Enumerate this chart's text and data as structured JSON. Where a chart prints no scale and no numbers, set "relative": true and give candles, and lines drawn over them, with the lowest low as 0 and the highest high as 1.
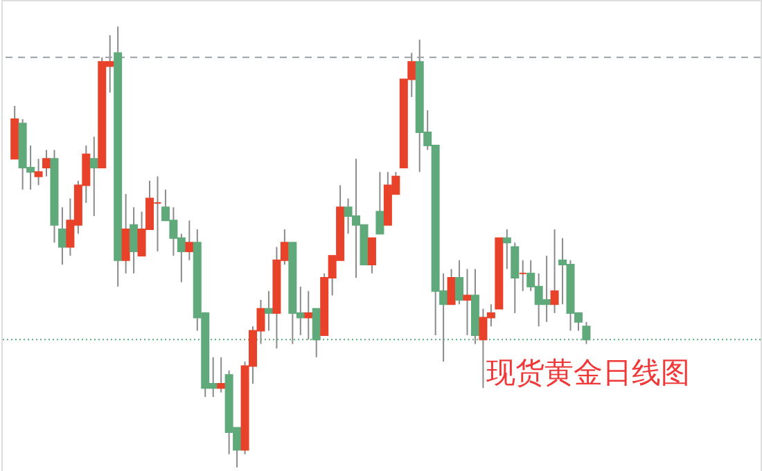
{
  "chart_data": {
    "type": "candlestick",
    "relative": true,
    "annotations": [
      "现货黄金日线图"
    ],
    "categories": [
      null,
      null,
      null,
      null,
      null,
      null,
      null,
      null,
      null,
      null,
      null,
      null,
      null,
      null,
      null,
      null,
      null,
      null,
      null,
      null,
      null,
      null,
      null,
      null,
      null,
      null,
      null,
      null,
      null,
      null,
      null,
      null,
      null,
      null,
      null,
      null,
      null,
      null,
      null,
      null,
      null,
      null,
      null,
      null,
      null,
      null,
      null,
      null,
      null,
      null,
      null,
      null,
      null,
      null,
      null,
      null,
      null,
      null,
      null,
      null,
      null,
      null,
      null,
      null,
      null,
      null,
      null,
      null,
      null,
      null,
      null,
      null,
      null
    ],
    "ohlc": [
      [
        0.7,
        0.82,
        0.7,
        0.79
      ],
      [
        0.78,
        0.79,
        0.63,
        0.68
      ],
      [
        0.68,
        0.73,
        0.63,
        0.67
      ],
      [
        0.66,
        0.7,
        0.64,
        0.67
      ],
      [
        0.68,
        0.72,
        0.66,
        0.7
      ],
      [
        0.7,
        0.72,
        0.51,
        0.55
      ],
      [
        0.54,
        0.59,
        0.46,
        0.5
      ],
      [
        0.5,
        0.61,
        0.48,
        0.56
      ],
      [
        0.55,
        0.65,
        0.53,
        0.64
      ],
      [
        0.64,
        0.73,
        0.6,
        0.71
      ],
      [
        0.7,
        0.75,
        0.57,
        0.68
      ],
      [
        0.68,
        0.93,
        0.68,
        0.92
      ],
      [
        0.91,
        0.98,
        0.85,
        0.92
      ],
      [
        0.94,
        1.0,
        0.41,
        0.47
      ],
      [
        0.47,
        0.62,
        0.44,
        0.54
      ],
      [
        0.55,
        0.59,
        0.44,
        0.49
      ],
      [
        0.48,
        0.58,
        0.48,
        0.54
      ],
      [
        0.54,
        0.65,
        0.54,
        0.61
      ],
      [
        0.6,
        0.66,
        0.49,
        0.6
      ],
      [
        0.59,
        0.63,
        0.56,
        0.56
      ],
      [
        0.56,
        0.59,
        0.48,
        0.52
      ],
      [
        0.52,
        0.53,
        0.42,
        0.49
      ],
      [
        0.49,
        0.56,
        0.47,
        0.51
      ],
      [
        0.51,
        0.54,
        0.31,
        0.34
      ],
      [
        0.35,
        0.35,
        0.16,
        0.18
      ],
      [
        0.19,
        0.25,
        0.16,
        0.18
      ],
      [
        0.18,
        0.25,
        0.17,
        0.19
      ],
      [
        0.21,
        0.22,
        0.03,
        0.08
      ],
      [
        0.09,
        0.09,
        0,
        0.04
      ],
      [
        0.04,
        0.24,
        0.03,
        0.23
      ],
      [
        0.23,
        0.32,
        0.19,
        0.31
      ],
      [
        0.31,
        0.38,
        0.28,
        0.36
      ],
      [
        0.36,
        0.4,
        0.31,
        0.35
      ],
      [
        0.35,
        0.5,
        0.27,
        0.47
      ],
      [
        0.47,
        0.54,
        0.46,
        0.51
      ],
      [
        0.51,
        0.51,
        0.28,
        0.35
      ],
      [
        0.35,
        0.41,
        0.3,
        0.34
      ],
      [
        0.34,
        0.4,
        0.29,
        0.35
      ],
      [
        0.36,
        0.36,
        0.25,
        0.29
      ],
      [
        0.3,
        0.44,
        0.3,
        0.43
      ],
      [
        0.43,
        0.48,
        0.39,
        0.48
      ],
      [
        0.47,
        0.64,
        0.47,
        0.59
      ],
      [
        0.59,
        0.61,
        0.53,
        0.57
      ],
      [
        0.57,
        0.7,
        0.43,
        0.55
      ],
      [
        0.55,
        0.55,
        0.46,
        0.46
      ],
      [
        0.46,
        0.52,
        0.44,
        0.52
      ],
      [
        0.58,
        0.67,
        0.53,
        0.53
      ],
      [
        0.55,
        0.67,
        0.55,
        0.64
      ],
      [
        0.62,
        0.67,
        0.62,
        0.66
      ],
      [
        0.68,
        0.88,
        0.68,
        0.88
      ],
      [
        0.88,
        0.94,
        0.84,
        0.92
      ],
      [
        0.92,
        0.97,
        0.67,
        0.76
      ],
      [
        0.76,
        0.81,
        0.72,
        0.73
      ],
      [
        0.73,
        0.73,
        0.3,
        0.4
      ],
      [
        0.4,
        0.44,
        0.24,
        0.37
      ],
      [
        0.37,
        0.45,
        0.37,
        0.43
      ],
      [
        0.43,
        0.47,
        0.37,
        0.38
      ],
      [
        0.38,
        0.45,
        0.3,
        0.39
      ],
      [
        0.39,
        0.45,
        0.28,
        0.3
      ],
      [
        0.29,
        0.36,
        0.18,
        0.34
      ],
      [
        0.34,
        0.37,
        0.32,
        0.35
      ],
      [
        0.36,
        0.52,
        0.36,
        0.52
      ],
      [
        0.52,
        0.54,
        0.45,
        0.51
      ],
      [
        0.5,
        0.51,
        0.35,
        0.43
      ],
      [
        0.44,
        0.47,
        0.4,
        0.44
      ],
      [
        0.44,
        0.47,
        0.4,
        0.41
      ],
      [
        0.41,
        0.44,
        0.32,
        0.37
      ],
      [
        0.38,
        0.48,
        0.33,
        0.37
      ],
      [
        0.37,
        0.54,
        0.35,
        0.4
      ],
      [
        0.47,
        0.52,
        0.37,
        0.46
      ],
      [
        0.46,
        0.47,
        0.31,
        0.35
      ],
      [
        0.35,
        0.35,
        0.31,
        0.33
      ],
      [
        0.32,
        0.33,
        0.28,
        0.29
      ]
    ],
    "colors": [
      "#e8432a",
      "#5fa97a",
      "#5fa97a",
      "#e8432a",
      "#e8432a",
      "#5fa97a",
      "#5fa97a",
      "#e8432a",
      "#e8432a",
      "#e8432a",
      "#5fa97a",
      "#e8432a",
      "#e8432a",
      "#5fa97a",
      "#e8432a",
      "#5fa97a",
      "#e8432a",
      "#e8432a",
      "#e8432a",
      "#5fa97a",
      "#5fa97a",
      "#5fa97a",
      "#e8432a",
      "#5fa97a",
      "#5fa97a",
      "#5fa97a",
      "#e8432a",
      "#5fa97a",
      "#5fa97a",
      "#e8432a",
      "#e8432a",
      "#e8432a",
      "#5fa97a",
      "#e8432a",
      "#e8432a",
      "#5fa97a",
      "#5fa97a",
      "#e8432a",
      "#5fa97a",
      "#e8432a",
      "#e8432a",
      "#e8432a",
      "#5fa97a",
      "#5fa97a",
      "#5fa97a",
      "#e8432a",
      "#5fa97a",
      "#e8432a",
      "#e8432a",
      "#e8432a",
      "#e8432a",
      "#5fa97a",
      "#5fa97a",
      "#5fa97a",
      "#5fa97a",
      "#e8432a",
      "#5fa97a",
      "#e8432a",
      "#5fa97a",
      "#e8432a",
      "#e8432a",
      "#e8432a",
      "#5fa97a",
      "#5fa97a",
      "#e8432a",
      "#5fa97a",
      "#5fa97a",
      "#5fa97a",
      "#e8432a",
      "#5fa97a",
      "#5fa97a",
      "#5fa97a",
      "#5fa97a"
    ],
    "ref_lines": [
      {
        "axis": "y",
        "value": 0.93,
        "color": "#9aa0a8",
        "line_style": "dashed"
      },
      {
        "axis": "y",
        "value": 0.29,
        "color": "#5fa97a",
        "line_style": "dotted"
      }
    ]
  }
}
